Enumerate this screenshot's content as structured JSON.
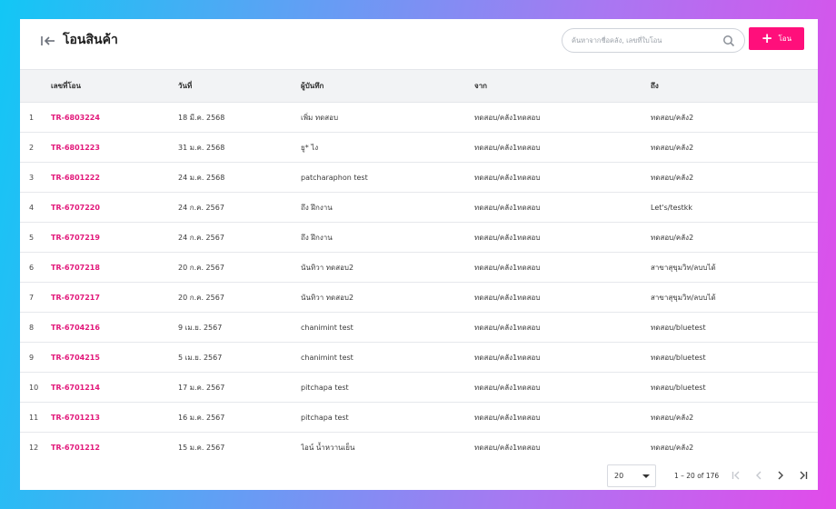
{
  "header": {
    "title": "โอนสินค้า",
    "search_placeholder": "ค้นหาจากชื่อคลัง, เลขที่ใบโอน",
    "add_label": "โอน"
  },
  "table": {
    "columns": [
      "",
      "เลขที่โอน",
      "วันที่",
      "ผู้บันทึก",
      "จาก",
      "ถึง"
    ],
    "rows": [
      {
        "num": "1",
        "doc": "TR-6803224",
        "date": "18 มี.ค. 2568",
        "recorder": "เพิ่ม ทดสอบ",
        "from": "ทดสอบ/คลัง1ทดสอบ",
        "to": "ทดสอบ/คลัง2"
      },
      {
        "num": "2",
        "doc": "TR-6801223",
        "date": "31 ม.ค. 2568",
        "recorder": "ยู* ไง",
        "from": "ทดสอบ/คลัง1ทดสอบ",
        "to": "ทดสอบ/คลัง2"
      },
      {
        "num": "3",
        "doc": "TR-6801222",
        "date": "24 ม.ค. 2568",
        "recorder": "patcharaphon test",
        "from": "ทดสอบ/คลัง1ทดสอบ",
        "to": "ทดสอบ/คลัง2"
      },
      {
        "num": "4",
        "doc": "TR-6707220",
        "date": "24 ก.ค. 2567",
        "recorder": "ถึง ฝึกงาน",
        "from": "ทดสอบ/คลัง1ทดสอบ",
        "to": "Let's/testkk"
      },
      {
        "num": "5",
        "doc": "TR-6707219",
        "date": "24 ก.ค. 2567",
        "recorder": "ถึง ฝึกงาน",
        "from": "ทดสอบ/คลัง1ทดสอบ",
        "to": "ทดสอบ/คลัง2"
      },
      {
        "num": "6",
        "doc": "TR-6707218",
        "date": "20 ก.ค. 2567",
        "recorder": "นันทิวา ทดสอบ2",
        "from": "ทดสอบ/คลัง1ทดสอบ",
        "to": "สาขาสุขุมวิท/ลบบได้"
      },
      {
        "num": "7",
        "doc": "TR-6707217",
        "date": "20 ก.ค. 2567",
        "recorder": "นันทิวา ทดสอบ2",
        "from": "ทดสอบ/คลัง1ทดสอบ",
        "to": "สาขาสุขุมวิท/ลบบได้"
      },
      {
        "num": "8",
        "doc": "TR-6704216",
        "date": "9 เม.ย. 2567",
        "recorder": "chanimint test",
        "from": "ทดสอบ/คลัง1ทดสอบ",
        "to": "ทดสอบ/bluetest"
      },
      {
        "num": "9",
        "doc": "TR-6704215",
        "date": "5 เม.ย. 2567",
        "recorder": "chanimint test",
        "from": "ทดสอบ/คลัง1ทดสอบ",
        "to": "ทดสอบ/bluetest"
      },
      {
        "num": "10",
        "doc": "TR-6701214",
        "date": "17 ม.ค. 2567",
        "recorder": "pitchapa test",
        "from": "ทดสอบ/คลัง1ทดสอบ",
        "to": "ทดสอบ/bluetest"
      },
      {
        "num": "11",
        "doc": "TR-6701213",
        "date": "16 ม.ค. 2567",
        "recorder": "pitchapa test",
        "from": "ทดสอบ/คลัง1ทดสอบ",
        "to": "ทดสอบ/คลัง2"
      },
      {
        "num": "12",
        "doc": "TR-6701212",
        "date": "15 ม.ค. 2567",
        "recorder": "ไอน์ น้ำหวานเย็น",
        "from": "ทดสอบ/คลัง1ทดสอบ",
        "to": "ทดสอบ/คลัง2"
      }
    ]
  },
  "pagination": {
    "page_size": "20",
    "range_text": "1 – 20 of 176"
  },
  "colors": {
    "accent": "#ff0f7b",
    "link": "#e2187a"
  },
  "icons": {
    "back": "arrow-left-bar-icon",
    "search": "search-icon",
    "add": "plus-icon",
    "first": "first-page-icon",
    "prev": "chevron-left-icon",
    "next": "chevron-right-icon",
    "last": "last-page-icon"
  }
}
